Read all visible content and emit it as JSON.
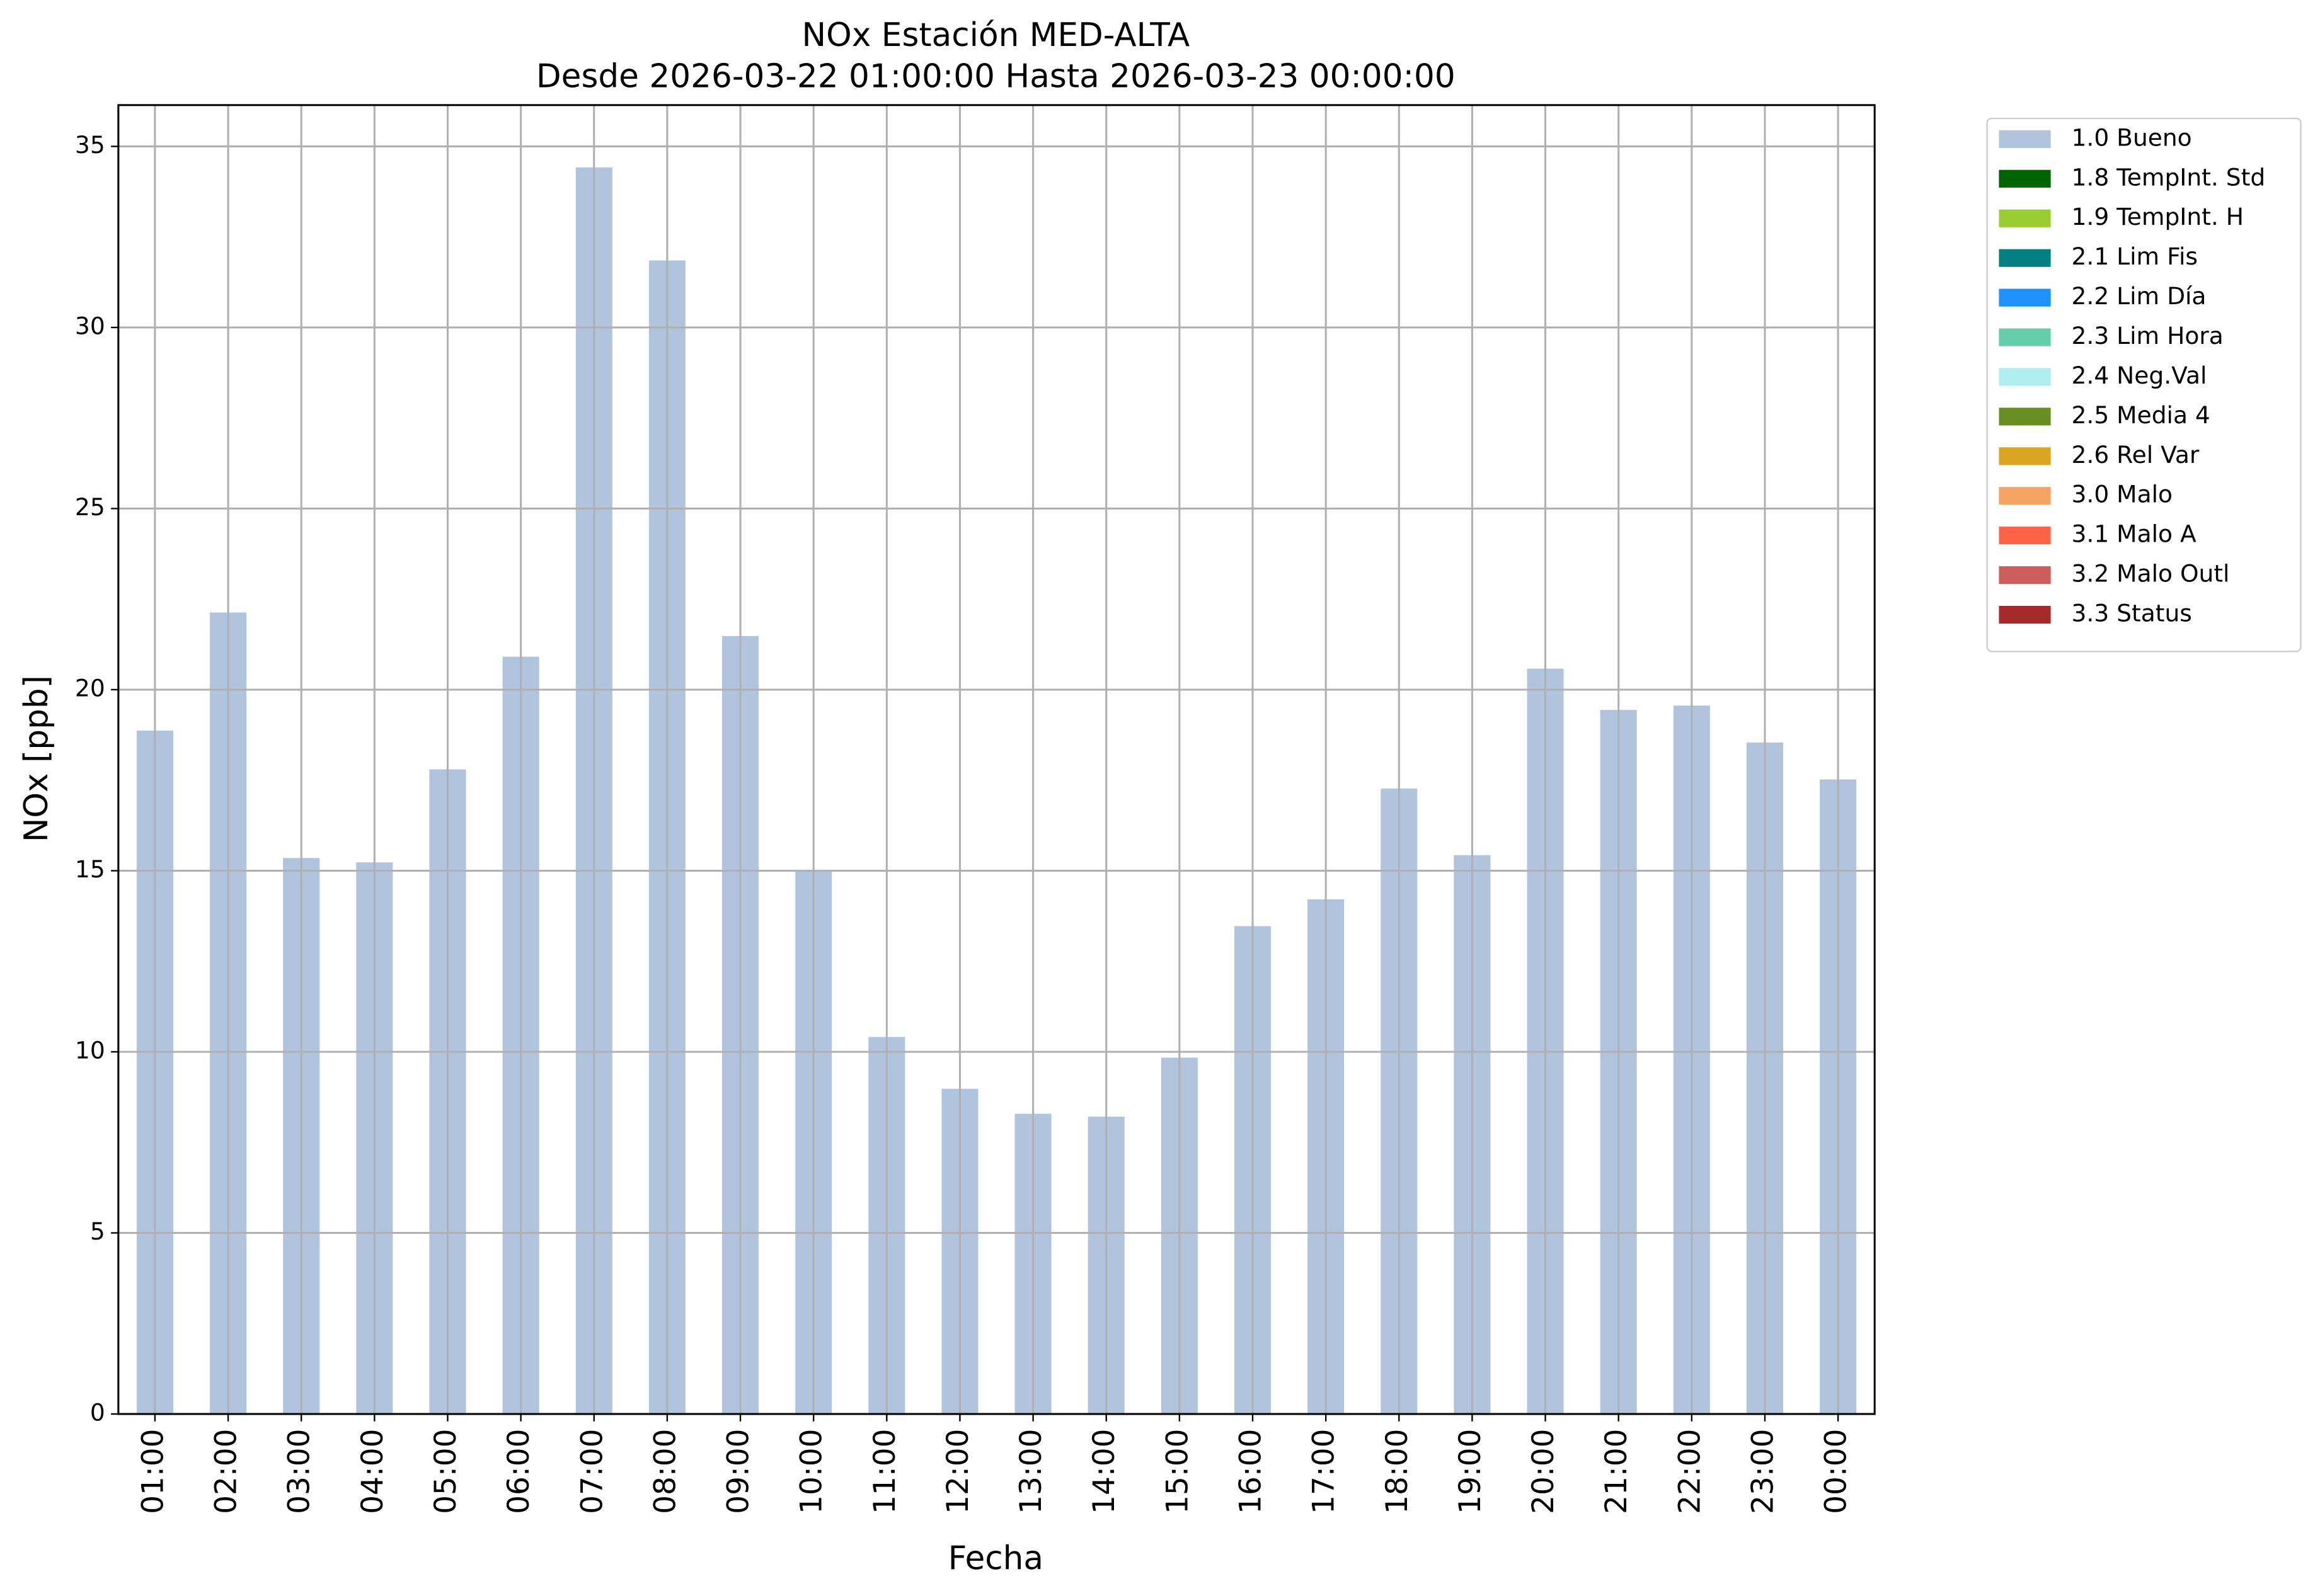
{
  "chart_data": {
    "type": "bar",
    "title": "NOx Estación MED-ALTA",
    "subtitle": "Desde 2026-03-22 01:00:00 Hasta 2026-03-23 00:00:00",
    "x_label": "Fecha",
    "y_label": "NOx [ppb]",
    "categories": [
      "01:00",
      "02:00",
      "03:00",
      "04:00",
      "05:00",
      "06:00",
      "07:00",
      "08:00",
      "09:00",
      "10:00",
      "11:00",
      "12:00",
      "13:00",
      "14:00",
      "15:00",
      "16:00",
      "17:00",
      "18:00",
      "19:00",
      "20:00",
      "21:00",
      "22:00",
      "23:00",
      "00:00"
    ],
    "series": [
      {
        "name": "1.0 Bueno",
        "color": "#b0c4de",
        "values": [
          18.87,
          22.13,
          15.35,
          15.23,
          17.8,
          20.91,
          34.42,
          31.85,
          21.48,
          15.03,
          10.41,
          8.98,
          8.29,
          8.21,
          9.84,
          13.47,
          14.21,
          17.27,
          15.43,
          20.58,
          19.44,
          19.56,
          18.54,
          17.52
        ]
      },
      {
        "name": "1.8 TempInt. Std",
        "color": "#006400"
      },
      {
        "name": "1.9 TempInt. H",
        "color": "#9acd32"
      },
      {
        "name": "2.1 Lim Fis",
        "color": "#008080"
      },
      {
        "name": "2.2 Lim Día",
        "color": "#1e90ff"
      },
      {
        "name": "2.3 Lim Hora",
        "color": "#66cdaa"
      },
      {
        "name": "2.4 Neg.Val",
        "color": "#afeeee"
      },
      {
        "name": "2.5 Media 4",
        "color": "#6b8e23"
      },
      {
        "name": "2.6 Rel Var",
        "color": "#daa520"
      },
      {
        "name": "3.0 Malo",
        "color": "#f4a460"
      },
      {
        "name": "3.1 Malo A",
        "color": "#ff6347"
      },
      {
        "name": "3.2 Malo Outl",
        "color": "#cd5c5c"
      },
      {
        "name": "3.3 Status",
        "color": "#a52a2a"
      }
    ],
    "ylim": [
      0,
      36.14
    ],
    "yticks": [
      0,
      5,
      10,
      15,
      20,
      25,
      30,
      35
    ],
    "grid": true,
    "legend": "outside upper right"
  }
}
